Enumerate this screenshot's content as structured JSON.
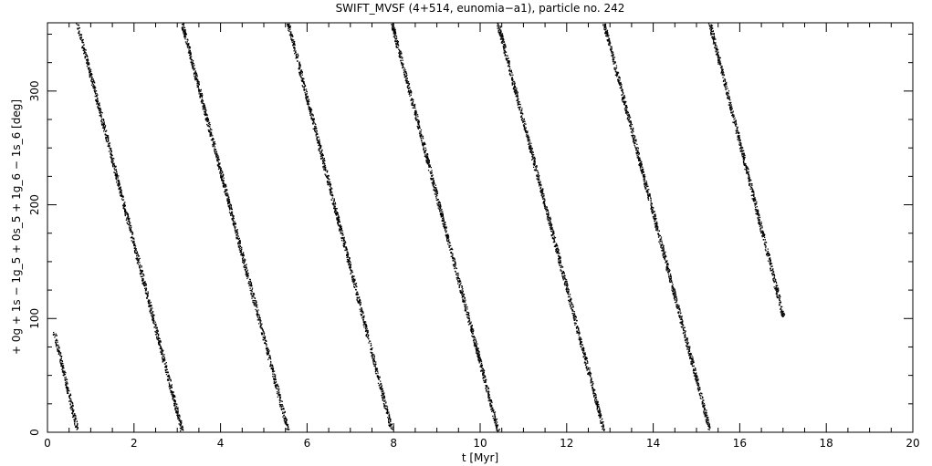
{
  "chart_data": {
    "type": "scatter",
    "title": "SWIFT_MVSF (4+514, eunomia−a1), particle no. 242",
    "xlabel": "t [Myr]",
    "ylabel": "+ 0g + 1s − 1g_5 + 0s_5 + 1g_6 − 1s_6 [deg]",
    "xlim": [
      0,
      20
    ],
    "ylim": [
      0,
      360
    ],
    "x_ticks": [
      0,
      2,
      4,
      6,
      8,
      10,
      12,
      14,
      16,
      18,
      20
    ],
    "y_ticks": [
      0,
      100,
      200,
      300
    ],
    "grid": false,
    "marker_color": "#000000",
    "series": [
      {
        "segments": [
          {
            "x": [
              0.15,
              0.68
            ],
            "y": [
              88,
              2
            ]
          },
          {
            "x": [
              0.68,
              3.1
            ],
            "y": [
              360,
              2
            ]
          },
          {
            "x": [
              3.1,
              5.55
            ],
            "y": [
              360,
              2
            ]
          },
          {
            "x": [
              5.55,
              7.95
            ],
            "y": [
              360,
              2
            ]
          },
          {
            "x": [
              7.95,
              10.4
            ],
            "y": [
              360,
              2
            ]
          },
          {
            "x": [
              10.4,
              12.85
            ],
            "y": [
              360,
              2
            ]
          },
          {
            "x": [
              12.85,
              15.3
            ],
            "y": [
              360,
              2
            ]
          },
          {
            "x": [
              15.3,
              17.0
            ],
            "y": [
              360,
              102
            ]
          }
        ]
      }
    ]
  }
}
